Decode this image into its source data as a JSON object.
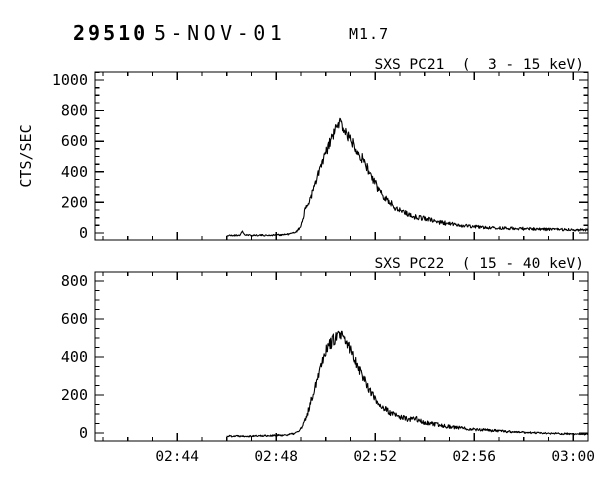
{
  "header": {
    "event_id": "29510",
    "date": "5-NOV-01",
    "flare_class": "M1.7"
  },
  "chart_data": {
    "type": "line",
    "ylabel": "CTS/SEC",
    "x_axis": {
      "unit": "time UT (minutes after 02:00)",
      "domain": [
        40.68,
        60.6
      ],
      "major_ticks": [
        44,
        48,
        52,
        56,
        60
      ],
      "major_labels": [
        "02:44",
        "02:48",
        "02:52",
        "02:56",
        "03:00"
      ],
      "minor_step": 1
    },
    "panels": [
      {
        "title": "SXS PC21  (  3 - 15 keV)",
        "detector": "SXS PC21",
        "energy_band_kev": "3 - 15",
        "y_domain": [
          -46,
          1052
        ],
        "y_major_ticks": [
          0,
          200,
          400,
          600,
          800,
          1000
        ],
        "y_minor_step": 50,
        "series": {
          "name": "SXS PC21 counts",
          "seed": 21,
          "t_start": 46.0,
          "sample_step": 0.022,
          "noise_base": 2,
          "noise_sqrt": 1.5,
          "keypoints": [
            [
              46.0,
              -18
            ],
            [
              46.3,
              -16
            ],
            [
              46.55,
              -14
            ],
            [
              46.64,
              12
            ],
            [
              46.74,
              -14
            ],
            [
              47.0,
              -16
            ],
            [
              47.3,
              -14
            ],
            [
              47.6,
              -16
            ],
            [
              47.9,
              -14
            ],
            [
              48.2,
              -12
            ],
            [
              48.5,
              -8
            ],
            [
              48.7,
              0
            ],
            [
              48.85,
              14
            ],
            [
              48.95,
              30
            ],
            [
              49.05,
              75
            ],
            [
              49.15,
              139
            ],
            [
              49.35,
              216
            ],
            [
              49.55,
              303
            ],
            [
              49.75,
              412
            ],
            [
              49.96,
              499
            ],
            [
              50.16,
              586
            ],
            [
              50.36,
              662
            ],
            [
              50.5,
              705
            ],
            [
              50.56,
              730
            ],
            [
              50.65,
              706
            ],
            [
              50.77,
              672
            ],
            [
              50.97,
              615
            ],
            [
              51.17,
              575
            ],
            [
              51.38,
              510
            ],
            [
              51.58,
              458
            ],
            [
              51.78,
              390
            ],
            [
              51.98,
              327
            ],
            [
              52.18,
              275
            ],
            [
              52.39,
              235
            ],
            [
              52.59,
              200
            ],
            [
              52.79,
              170
            ],
            [
              53.0,
              150
            ],
            [
              53.19,
              137
            ],
            [
              53.4,
              118
            ],
            [
              53.6,
              105
            ],
            [
              53.8,
              100
            ],
            [
              54.0,
              98
            ],
            [
              54.2,
              85
            ],
            [
              54.41,
              78
            ],
            [
              54.6,
              70
            ],
            [
              54.81,
              65
            ],
            [
              55.21,
              55
            ],
            [
              55.82,
              44
            ],
            [
              56.63,
              34
            ],
            [
              57.44,
              30
            ],
            [
              58.25,
              27
            ],
            [
              59.06,
              24
            ],
            [
              59.87,
              22
            ],
            [
              60.6,
              20
            ]
          ]
        }
      },
      {
        "title": "SXS PC22  ( 15 - 40 keV)",
        "detector": "SXS PC22",
        "energy_band_kev": "15 - 40",
        "y_domain": [
          -42,
          847
        ],
        "y_major_ticks": [
          0,
          200,
          400,
          600,
          800
        ],
        "y_minor_step": 50,
        "series": {
          "name": "SXS PC22 counts",
          "seed": 22,
          "t_start": 46.0,
          "sample_step": 0.022,
          "noise_base": 2,
          "noise_sqrt": 1.4,
          "keypoints": [
            [
              46.0,
              -16
            ],
            [
              46.5,
              -15
            ],
            [
              47.0,
              -16
            ],
            [
              47.5,
              -14
            ],
            [
              48.0,
              -13
            ],
            [
              48.4,
              -10
            ],
            [
              48.7,
              -4
            ],
            [
              48.9,
              8
            ],
            [
              49.05,
              30
            ],
            [
              49.2,
              75
            ],
            [
              49.35,
              140
            ],
            [
              49.55,
              235
            ],
            [
              49.75,
              335
            ],
            [
              49.96,
              425
            ],
            [
              50.16,
              468
            ],
            [
              50.36,
              495
            ],
            [
              50.5,
              508
            ],
            [
              50.56,
              518
            ],
            [
              50.7,
              500
            ],
            [
              50.85,
              472
            ],
            [
              50.97,
              448
            ],
            [
              51.17,
              392
            ],
            [
              51.38,
              332
            ],
            [
              51.58,
              278
            ],
            [
              51.78,
              226
            ],
            [
              51.98,
              182
            ],
            [
              52.18,
              150
            ],
            [
              52.39,
              127
            ],
            [
              52.59,
              107
            ],
            [
              52.79,
              95
            ],
            [
              53.0,
              85
            ],
            [
              53.19,
              78
            ],
            [
              53.4,
              70
            ],
            [
              53.55,
              74
            ],
            [
              53.65,
              80
            ],
            [
              53.8,
              62
            ],
            [
              54.0,
              55
            ],
            [
              54.41,
              45
            ],
            [
              54.81,
              38
            ],
            [
              55.21,
              30
            ],
            [
              55.82,
              22
            ],
            [
              56.63,
              14
            ],
            [
              57.44,
              7
            ],
            [
              58.25,
              2
            ],
            [
              59.06,
              -2
            ],
            [
              59.87,
              -5
            ],
            [
              60.6,
              -8
            ]
          ]
        }
      }
    ]
  }
}
